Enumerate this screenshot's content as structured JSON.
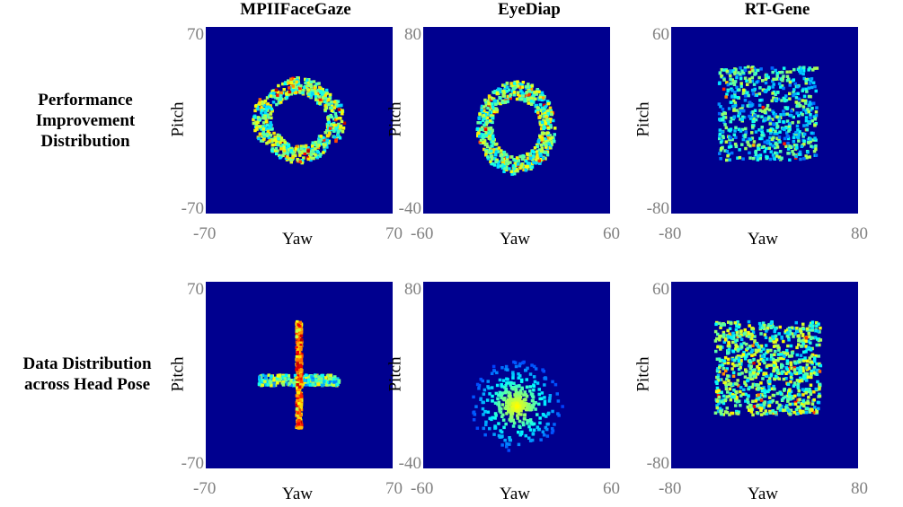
{
  "columns": [
    "MPIIFaceGaze",
    "EyeDiap",
    "RT-Gene"
  ],
  "rows": [
    {
      "label_lines": [
        "Performance",
        "Improvement",
        "Distribution"
      ]
    },
    {
      "label_lines": [
        "Data Distribution",
        "across Head Pose"
      ]
    }
  ],
  "chart_data": [
    {
      "type": "heatmap",
      "row": "Performance Improvement Distribution",
      "column": "MPIIFaceGaze",
      "xlabel": "Yaw",
      "ylabel": "Pitch",
      "xlim": [
        -70,
        70
      ],
      "ylim": [
        -70,
        70
      ],
      "pattern": "ring",
      "cx": 0,
      "cy": 0,
      "rx": 30,
      "ry": 28,
      "cross": true,
      "x_ticks": [
        "-70",
        "70"
      ],
      "y_ticks": [
        "70",
        "-70"
      ]
    },
    {
      "type": "heatmap",
      "row": "Performance Improvement Distribution",
      "column": "EyeDiap",
      "xlabel": "Yaw",
      "ylabel": "Pitch",
      "xlim": [
        -60,
        60
      ],
      "ylim": [
        -40,
        80
      ],
      "pattern": "ring",
      "cx": 0,
      "cy": 15,
      "rx": 22,
      "ry": 26,
      "cross": false,
      "x_ticks": [
        "-60",
        "60"
      ],
      "y_ticks": [
        "80",
        "-40"
      ]
    },
    {
      "type": "heatmap",
      "row": "Performance Improvement Distribution",
      "column": "RT-Gene",
      "xlabel": "Yaw",
      "ylabel": "Pitch",
      "xlim": [
        -80,
        80
      ],
      "ylim": [
        -80,
        60
      ],
      "pattern": "box",
      "cx": 3,
      "cy": -5,
      "rx": 42,
      "ry": 35,
      "cross": false,
      "x_ticks": [
        "-80",
        "80"
      ],
      "y_ticks": [
        "60",
        "-80"
      ]
    },
    {
      "type": "heatmap",
      "row": "Data Distribution across Head Pose",
      "column": "MPIIFaceGaze",
      "xlabel": "Yaw",
      "ylabel": "Pitch",
      "xlim": [
        -70,
        70
      ],
      "ylim": [
        -70,
        70
      ],
      "pattern": "cross",
      "cx": 0,
      "cy": 0,
      "rx": 30,
      "ry": 40,
      "cross": true,
      "x_ticks": [
        "-70",
        "70"
      ],
      "y_ticks": [
        "70",
        "-70"
      ]
    },
    {
      "type": "heatmap",
      "row": "Data Distribution across Head Pose",
      "column": "EyeDiap",
      "xlabel": "Yaw",
      "ylabel": "Pitch",
      "xlim": [
        -60,
        60
      ],
      "ylim": [
        -40,
        80
      ],
      "pattern": "blob",
      "cx": 0,
      "cy": 10,
      "rx": 30,
      "ry": 30,
      "cross": false,
      "x_ticks": [
        "-60",
        "60"
      ],
      "y_ticks": [
        "80",
        "-40"
      ]
    },
    {
      "type": "heatmap",
      "row": "Data Distribution across Head Pose",
      "column": "RT-Gene",
      "xlabel": "Yaw",
      "ylabel": "Pitch",
      "xlim": [
        -80,
        80
      ],
      "ylim": [
        -80,
        60
      ],
      "pattern": "dense-box",
      "cx": 3,
      "cy": -5,
      "rx": 45,
      "ry": 35,
      "cross": false,
      "x_ticks": [
        "-80",
        "80"
      ],
      "y_ticks": [
        "60",
        "-80"
      ]
    }
  ],
  "colors": {
    "background": "#00008f",
    "colormap": "jet"
  }
}
